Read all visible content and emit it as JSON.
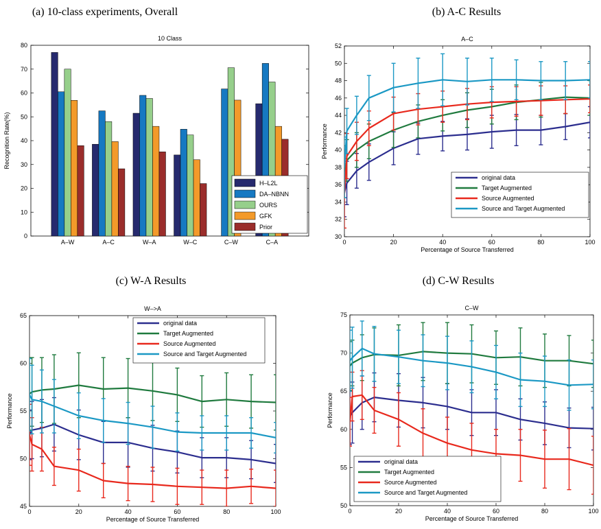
{
  "colors": {
    "original": "#2b2d8e",
    "target": "#1f7a3e",
    "source": "#e8281c",
    "both": "#1a98c4",
    "H-L2L": "#262a6e",
    "DA-NBNN": "#1679c2",
    "OURS": "#96cf8b",
    "GFK": "#f39a2a",
    "Prior": "#9a2d2b"
  },
  "chart_data": [
    {
      "type": "bar",
      "caption": "(a) 10-class experiments, Overall",
      "title": "10 Class",
      "xlabel": "",
      "ylabel": "Recognition Rate(%)",
      "ylim": [
        0,
        80
      ],
      "yticks": [
        0,
        10,
        20,
        30,
        40,
        50,
        60,
        70,
        80
      ],
      "categories": [
        "A–W",
        "A–C",
        "W–A",
        "W–C",
        "C–W",
        "C–A"
      ],
      "series": [
        {
          "name": "H–L2L",
          "color_key": "H-L2L",
          "values": [
            77,
            38.5,
            51.5,
            34,
            0,
            55.5
          ]
        },
        {
          "name": "DA–NBNN",
          "color_key": "DA-NBNN",
          "values": [
            60.5,
            52.5,
            59,
            44.8,
            61.7,
            72.4
          ]
        },
        {
          "name": "OURS",
          "color_key": "OURS",
          "values": [
            70,
            48,
            57.7,
            42.4,
            70.6,
            64.6
          ]
        },
        {
          "name": "GFK",
          "color_key": "GFK",
          "values": [
            56.9,
            39.6,
            46,
            32,
            57,
            46
          ]
        },
        {
          "name": "Prior",
          "color_key": "Prior",
          "values": [
            37.9,
            28.2,
            35.3,
            22,
            0,
            40.6
          ]
        }
      ],
      "legend_position": "bottom-right",
      "grid": false
    },
    {
      "type": "line",
      "caption": "(b) A-C Results",
      "title": "A–C",
      "xlabel": "Percentage of Source Transferred",
      "ylabel": "Performance",
      "xlim": [
        0,
        100
      ],
      "ylim": [
        30,
        52
      ],
      "xticks": [
        0,
        20,
        40,
        60,
        80,
        100
      ],
      "yticks": [
        30,
        32,
        34,
        36,
        38,
        40,
        42,
        44,
        46,
        48,
        50,
        52
      ],
      "x": [
        0,
        1,
        5,
        10,
        20,
        30,
        40,
        50,
        60,
        70,
        80,
        90,
        100
      ],
      "series": [
        {
          "name": "original data",
          "color_key": "original",
          "values": [
            35.1,
            36.2,
            37.6,
            38.6,
            40.2,
            41.3,
            41.6,
            41.8,
            42.1,
            42.3,
            42.3,
            42.7,
            43.2
          ],
          "errors": [
            2.8,
            2.5,
            2.0,
            2.1,
            1.9,
            1.8,
            1.7,
            1.8,
            1.9,
            1.8,
            1.7,
            1.5,
            1.8
          ]
        },
        {
          "name": "Target Augmented",
          "color_key": "target",
          "values": [
            37.5,
            38.8,
            40.0,
            41.0,
            42.3,
            43.3,
            44.0,
            44.6,
            45.0,
            45.5,
            45.8,
            46.1,
            46.0
          ],
          "errors": [
            3.0,
            2.4,
            2.0,
            2.0,
            2.0,
            1.9,
            1.8,
            2.0,
            2.0,
            2.0,
            2.0,
            1.9,
            2.0
          ]
        },
        {
          "name": "Source Augmented",
          "color_key": "source",
          "values": [
            35.0,
            39.3,
            41.0,
            42.5,
            44.2,
            44.7,
            45.0,
            45.3,
            45.5,
            45.6,
            45.7,
            45.8,
            45.9
          ],
          "errors": [
            4.0,
            2.6,
            2.2,
            2.0,
            1.9,
            1.8,
            1.8,
            1.8,
            1.8,
            1.7,
            1.7,
            1.6,
            1.6
          ]
        },
        {
          "name": "Source and Target Augmented",
          "color_key": "both",
          "values": [
            38.0,
            42.2,
            44.0,
            46.0,
            47.2,
            47.7,
            48.1,
            47.9,
            48.1,
            48.1,
            48.0,
            48.0,
            48.1
          ],
          "errors": [
            3.5,
            2.6,
            2.2,
            2.6,
            2.8,
            2.9,
            3.0,
            2.7,
            2.5,
            2.3,
            2.2,
            2.2,
            2.1
          ]
        }
      ],
      "legend_position": "bottom-right",
      "grid": false
    },
    {
      "type": "line",
      "caption": "(c) W-A Results",
      "title": "W–>A",
      "xlabel": "Percentage of Source Transferred",
      "ylabel": "Performance",
      "xlim": [
        0,
        100
      ],
      "ylim": [
        45,
        65
      ],
      "xticks": [
        0,
        20,
        40,
        60,
        80,
        100
      ],
      "yticks": [
        45,
        50,
        55,
        60,
        65
      ],
      "x": [
        0,
        1,
        5,
        10,
        20,
        30,
        40,
        50,
        60,
        70,
        80,
        90,
        100
      ],
      "series": [
        {
          "name": "original data",
          "color_key": "original",
          "values": [
            52.5,
            53.0,
            53.2,
            53.6,
            52.5,
            51.7,
            51.7,
            51.1,
            50.7,
            50.1,
            50.1,
            49.9,
            49.5
          ],
          "errors": [
            2.6,
            3.0,
            3.0,
            2.8,
            2.6,
            2.2,
            2.6,
            2.4,
            2.2,
            2.1,
            2.1,
            2.0,
            2.0
          ]
        },
        {
          "name": "Target Augmented",
          "color_key": "target",
          "values": [
            56.8,
            57.0,
            57.2,
            57.3,
            57.7,
            57.3,
            57.4,
            57.1,
            56.7,
            56.0,
            56.2,
            56.0,
            55.9
          ],
          "errors": [
            3.8,
            3.6,
            3.4,
            3.6,
            3.4,
            3.3,
            3.1,
            3.1,
            2.8,
            2.7,
            2.8,
            2.8,
            2.9
          ]
        },
        {
          "name": "Source Augmented",
          "color_key": "source",
          "values": [
            52.5,
            51.5,
            51.0,
            49.2,
            48.8,
            47.7,
            47.4,
            47.3,
            47.1,
            47.0,
            46.9,
            47.1,
            46.9
          ],
          "errors": [
            3.2,
            2.8,
            2.3,
            2.0,
            2.2,
            1.8,
            1.8,
            1.8,
            1.9,
            1.8,
            1.9,
            1.8,
            1.9
          ]
        },
        {
          "name": "Source and Target Augmented",
          "color_key": "both",
          "values": [
            56.7,
            56.2,
            56.0,
            55.5,
            54.5,
            54.0,
            53.7,
            53.3,
            52.8,
            52.7,
            52.7,
            52.7,
            52.2
          ],
          "errors": [
            3.8,
            3.6,
            3.3,
            2.8,
            2.4,
            2.3,
            2.2,
            2.2,
            2.0,
            1.8,
            1.8,
            1.6,
            1.6
          ]
        }
      ],
      "legend_position": "top-right",
      "grid": false
    },
    {
      "type": "line",
      "caption": "(d) C-W Results",
      "title": "C–W",
      "xlabel": "Percentage of Source Transferred",
      "ylabel": "Performance",
      "xlim": [
        0,
        100
      ],
      "ylim": [
        50,
        75
      ],
      "xticks": [
        0,
        20,
        40,
        60,
        80,
        100
      ],
      "yticks": [
        50,
        55,
        60,
        65,
        70,
        75
      ],
      "x": [
        0,
        1,
        5,
        10,
        20,
        30,
        40,
        50,
        60,
        70,
        80,
        90,
        100
      ],
      "series": [
        {
          "name": "original data",
          "color_key": "original",
          "values": [
            61.7,
            62.2,
            63.5,
            64.2,
            63.8,
            63.5,
            63.0,
            62.2,
            62.2,
            61.3,
            60.8,
            60.2,
            60.1
          ],
          "errors": [
            3.7,
            4.0,
            3.5,
            3.2,
            3.5,
            3.3,
            3.0,
            3.0,
            3.0,
            2.7,
            2.8,
            2.6,
            2.8
          ]
        },
        {
          "name": "Target Augmented",
          "color_key": "target",
          "values": [
            68.3,
            68.7,
            69.4,
            69.8,
            69.7,
            70.2,
            70.0,
            69.9,
            69.4,
            69.5,
            69.0,
            69.0,
            68.6
          ],
          "errors": [
            3.2,
            3.0,
            3.0,
            3.5,
            4.0,
            3.8,
            4.0,
            3.8,
            3.5,
            3.8,
            3.5,
            3.3,
            3.1
          ]
        },
        {
          "name": "Source Augmented",
          "color_key": "source",
          "values": [
            61.0,
            64.3,
            64.5,
            62.5,
            61.3,
            59.5,
            58.2,
            57.3,
            56.8,
            56.6,
            56.1,
            56.1,
            55.3
          ],
          "errors": [
            3.2,
            3.2,
            3.2,
            3.0,
            3.5,
            3.2,
            3.4,
            3.5,
            3.2,
            3.4,
            3.8,
            4.0,
            3.8
          ]
        },
        {
          "name": "Source and Target Augmented",
          "color_key": "both",
          "values": [
            69.0,
            69.4,
            70.6,
            69.9,
            69.5,
            69.0,
            68.7,
            68.2,
            67.5,
            66.5,
            66.3,
            65.8,
            65.9
          ],
          "errors": [
            4.0,
            4.0,
            3.6,
            3.6,
            3.5,
            3.4,
            3.5,
            3.4,
            3.5,
            3.5,
            3.3,
            3.3,
            3.2
          ]
        }
      ],
      "legend_position": "bottom-left",
      "grid": false
    }
  ]
}
